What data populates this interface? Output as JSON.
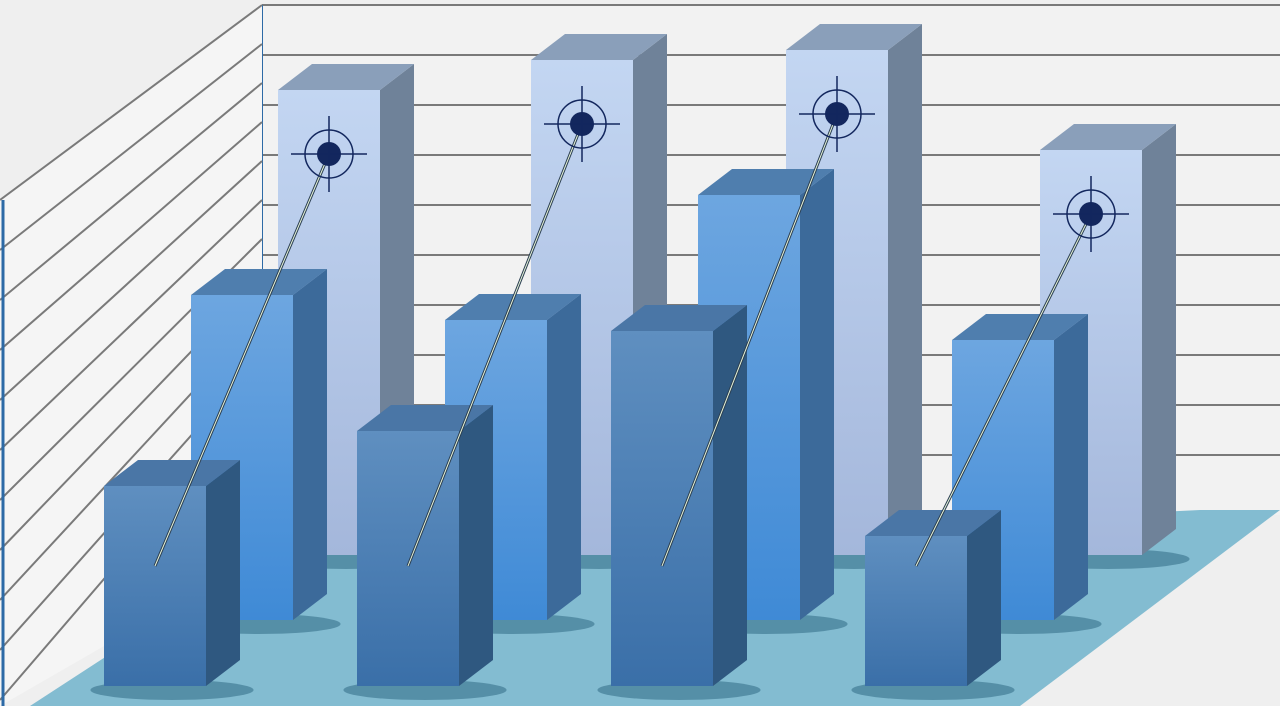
{
  "chart_data": {
    "type": "bar",
    "style": "3d-grouped-illustration",
    "categories": [
      "",
      "",
      "",
      ""
    ],
    "series": [
      {
        "values": [
          9.3,
          9.9,
          10.1,
          8.1
        ],
        "color": "#b7cdec"
      },
      {
        "values": [
          6.5,
          6.0,
          8.5,
          5.6
        ],
        "color": "#5b9ad8"
      },
      {
        "values": [
          4.0,
          5.1,
          7.1,
          3.0
        ],
        "color": "#4d7fb5"
      }
    ],
    "markers": {
      "type": "target-icon",
      "on_series": 0,
      "connector_from_series": 2
    },
    "grid": true,
    "title": "",
    "xlabel": "",
    "ylabel": "",
    "colors": {
      "background": "#efefef",
      "wall": "#f2f2f2",
      "grid": "#7a7a7a",
      "floor": "#83bcd1",
      "axis": "#2d6aa6",
      "target": "#13275e"
    }
  }
}
